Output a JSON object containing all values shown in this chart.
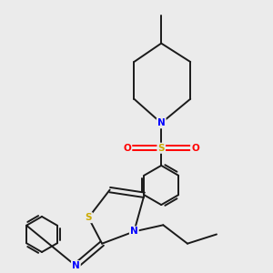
{
  "background_color": "#ebebeb",
  "bond_color": "#1a1a1a",
  "N_color": "#0000ff",
  "S_color": "#ccaa00",
  "O_color": "#ff0000",
  "figsize": [
    3.0,
    3.0
  ],
  "dpi": 100,
  "xlim": [
    0,
    10
  ],
  "ylim": [
    0,
    10
  ]
}
